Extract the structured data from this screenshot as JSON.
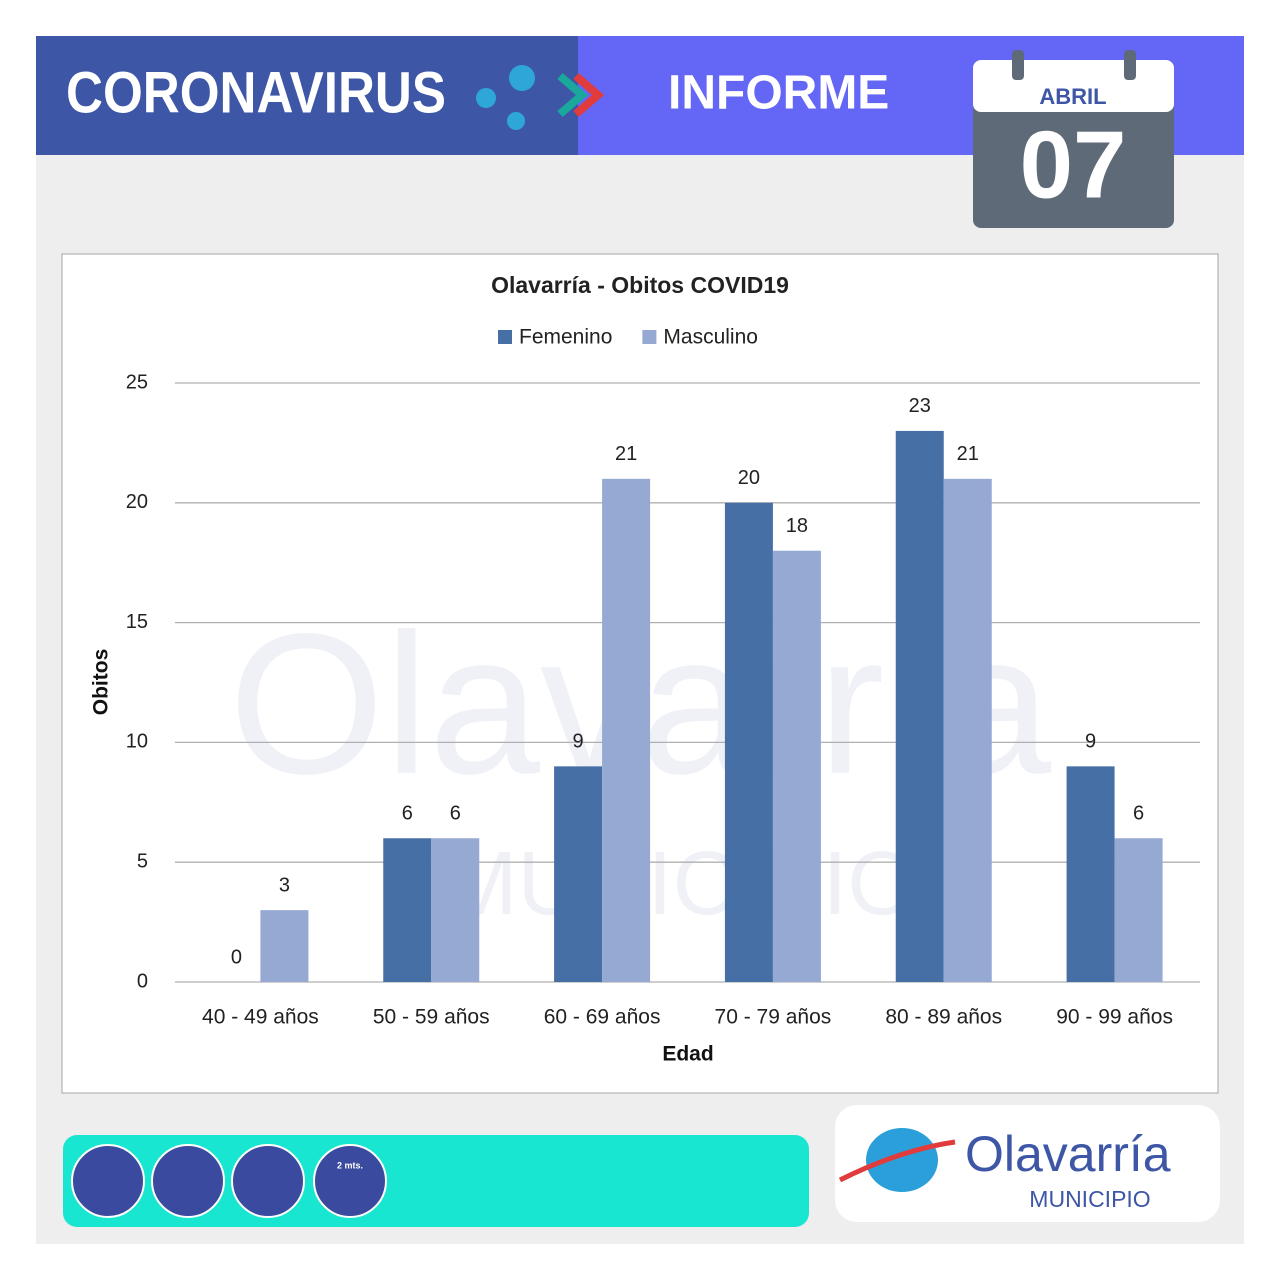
{
  "header": {
    "left": "CORONAVIRUS",
    "right": "INFORME",
    "month": "ABRIL",
    "day": "07"
  },
  "chart_data": {
    "type": "bar",
    "title": "Olavarría - Obitos COVID19",
    "x_label": "Edad",
    "y_label": "Obitos",
    "categories": [
      "40 - 49 años",
      "50 - 59 años",
      "60 - 69 años",
      "70 - 79 años",
      "80 - 89 años",
      "90 - 99 años"
    ],
    "series": [
      {
        "name": "Femenino",
        "color": "#466fa5",
        "values": [
          0,
          6,
          9,
          20,
          23,
          9
        ]
      },
      {
        "name": "Masculino",
        "color": "#95a9d2",
        "values": [
          3,
          6,
          21,
          18,
          21,
          6
        ]
      }
    ],
    "ylim": [
      0,
      25
    ],
    "yticks": [
      0,
      5,
      10,
      15,
      20,
      25
    ],
    "grid": true,
    "legend": "top"
  },
  "footer": {
    "icon_text": "2 mts.",
    "logo": "Olavarría",
    "sub": "MUNICIPIO"
  }
}
